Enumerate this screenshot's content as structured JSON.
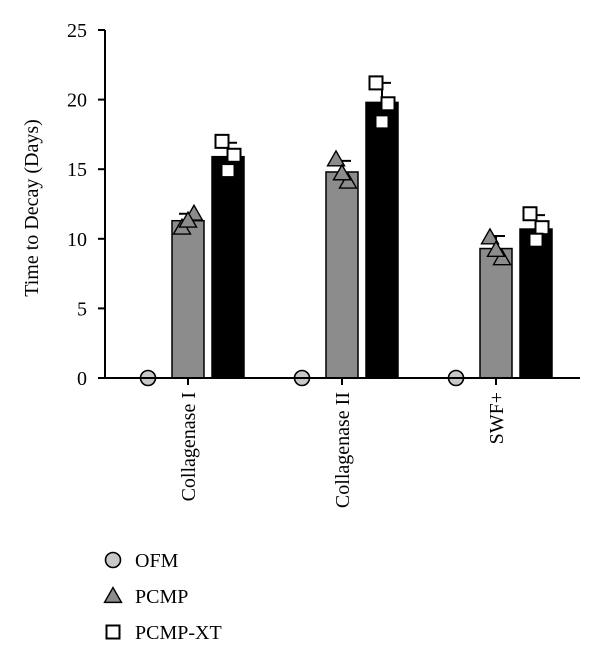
{
  "chart_data": {
    "type": "bar",
    "ylabel": "Time to Decay (Days)",
    "xlabel": "",
    "ylim": [
      0,
      25
    ],
    "yticks": [
      0,
      5,
      10,
      15,
      20,
      25
    ],
    "categories": [
      "Collagenase I",
      "Collagenase II",
      "SWF+"
    ],
    "series": [
      {
        "name": "OFM",
        "marker": "circle",
        "bar_color": "#8c8c8c",
        "marker_fill": "#c8c8c8",
        "values": [
          0,
          0,
          0
        ],
        "errors": [
          0,
          0,
          0
        ],
        "points": [
          [
            0
          ],
          [
            0
          ],
          [
            0
          ]
        ]
      },
      {
        "name": "PCMP",
        "marker": "triangle",
        "bar_color": "#8c8c8c",
        "marker_fill": "#8c8c8c",
        "values": [
          11.3,
          14.8,
          9.3
        ],
        "errors": [
          0.5,
          0.8,
          0.9
        ],
        "points": [
          [
            10.8,
            11.8,
            11.3
          ],
          [
            15.7,
            14.1,
            14.7
          ],
          [
            10.1,
            8.6,
            9.2
          ]
        ]
      },
      {
        "name": "PCMP-XT",
        "marker": "square",
        "bar_color": "#000000",
        "marker_fill": "#ffffff",
        "values": [
          15.9,
          19.8,
          10.7
        ],
        "errors": [
          1.0,
          1.4,
          1.0
        ],
        "points": [
          [
            17.0,
            16.0,
            14.9
          ],
          [
            21.2,
            19.7,
            18.4
          ],
          [
            11.8,
            10.8,
            9.9
          ]
        ]
      }
    ],
    "legend_position": "bottom-left",
    "grid": false
  }
}
